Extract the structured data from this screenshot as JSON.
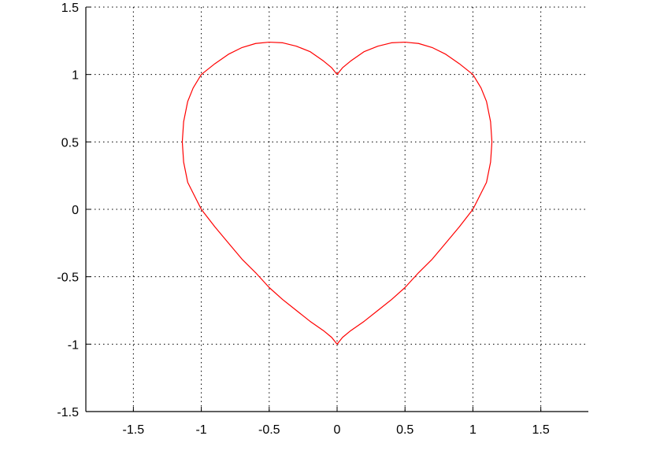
{
  "chart_data": {
    "type": "line",
    "title": "",
    "xlabel": "",
    "ylabel": "",
    "xlim": [
      -1.85,
      1.85
    ],
    "ylim": [
      -1.5,
      1.5
    ],
    "x_ticks": [
      -1.5,
      -1,
      -0.5,
      0,
      0.5,
      1,
      1.5
    ],
    "x_tick_labels": [
      "-1.5",
      "-1",
      "-0.5",
      "0",
      "0.5",
      "1",
      "1.5"
    ],
    "y_ticks": [
      1.5,
      1,
      0.5,
      0,
      -0.5,
      -1,
      -1.5
    ],
    "y_tick_labels": [
      "1.5",
      "1",
      "0.5",
      "0",
      "-0.5",
      "-1",
      "-1.5"
    ],
    "grid": true,
    "grid_style": "dotted",
    "legend": "none",
    "colors": {
      "line": "#ff0000",
      "axis": "#000000",
      "grid": "#000000",
      "background": "#ffffff"
    },
    "series": [
      {
        "x": [
          0,
          0.04,
          0.1,
          0.2,
          0.3,
          0.4,
          0.5,
          0.6,
          0.7,
          0.8,
          0.9,
          1.0,
          1.06,
          1.1,
          1.13,
          1.14,
          1.13,
          1.1,
          1.05,
          1.0,
          0.9,
          0.8,
          0.7,
          0.6,
          0.5,
          0.4,
          0.3,
          0.2,
          0.1,
          0.04,
          0,
          -0.04,
          -0.1,
          -0.2,
          -0.3,
          -0.4,
          -0.5,
          -0.6,
          -0.7,
          -0.8,
          -0.9,
          -1.0,
          -1.05,
          -1.1,
          -1.13,
          -1.14,
          -1.13,
          -1.1,
          -1.06,
          -1.0,
          -0.9,
          -0.8,
          -0.7,
          -0.6,
          -0.5,
          -0.4,
          -0.3,
          -0.2,
          -0.1,
          -0.04,
          0
        ],
        "y": [
          1.0,
          1.05,
          1.1,
          1.17,
          1.21,
          1.235,
          1.24,
          1.23,
          1.2,
          1.15,
          1.08,
          1.0,
          0.9,
          0.8,
          0.65,
          0.5,
          0.35,
          0.2,
          0.1,
          0.0,
          -0.13,
          -0.25,
          -0.37,
          -0.47,
          -0.58,
          -0.67,
          -0.75,
          -0.83,
          -0.9,
          -0.95,
          -1.0,
          -0.95,
          -0.9,
          -0.83,
          -0.75,
          -0.67,
          -0.58,
          -0.47,
          -0.37,
          -0.25,
          -0.13,
          0.0,
          0.1,
          0.2,
          0.35,
          0.5,
          0.65,
          0.8,
          0.9,
          1.0,
          1.08,
          1.15,
          1.2,
          1.23,
          1.24,
          1.235,
          1.21,
          1.17,
          1.1,
          1.05,
          1.0
        ]
      }
    ]
  }
}
